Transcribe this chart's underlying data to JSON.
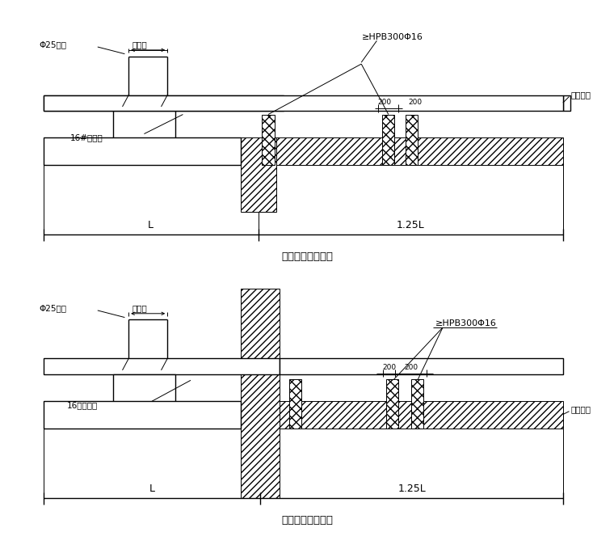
{
  "bg_color": "#ffffff",
  "line_color": "#000000",
  "title1": "悬挂钓棁楼面构造",
  "title2": "悬挂钓棁穿墙构造",
  "label_hpb1": "≥HPB300Φ16",
  "label_hpb2": "≥HPB300Φ16",
  "label_phi25_1": "Φ25钉筋",
  "label_phi25_2": "Φ25钉筋",
  "label_tongjiakuan1": "同架宽",
  "label_tongjiakuan2": "同架宽",
  "label_16gong1": "16#工字钓",
  "label_16gong2": "16号工字钓",
  "label_mu1": "木槟婥紧",
  "label_mu2": "木槟婥紧",
  "label_200a": "200",
  "label_200b": "200",
  "label_L": "L",
  "label_125L": "1.25L"
}
